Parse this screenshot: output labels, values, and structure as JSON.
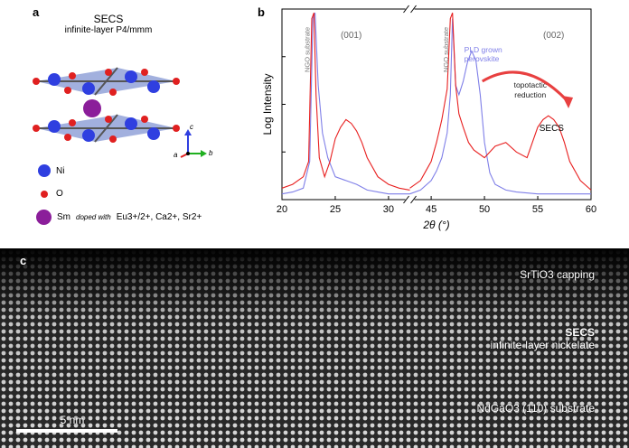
{
  "panel_a": {
    "label": "a",
    "title": "SECS",
    "subtitle": "infinite-layer P4/mmm",
    "axes": {
      "a": "a",
      "b": "b",
      "c": "c"
    },
    "legend": [
      {
        "name": "Ni",
        "color": "#2f3fe0"
      },
      {
        "name": "O",
        "color": "#e02020"
      },
      {
        "name": "Sm",
        "doped_with": "doped with",
        "dopants": "Eu3+/2+, Ca2+, Sr2+",
        "color": "#8b1e9a"
      }
    ]
  },
  "panel_b": {
    "label": "b",
    "annotations": {
      "ngo1": "NGO substrate",
      "ngo2": "NGO substrate",
      "p001": "(001)",
      "p002": "(002)",
      "pld": "PLD grown perovskite",
      "topo": "topotactic reduction",
      "secs": "SECS"
    }
  },
  "chart_data": {
    "type": "line",
    "title": "",
    "xlabel": "2θ (°)",
    "ylabel": "Log Intensity",
    "x_ticks": [
      20,
      25,
      30,
      45,
      50,
      55,
      60
    ],
    "axis_break": [
      32,
      43
    ],
    "series": [
      {
        "name": "PLD grown perovskite",
        "color": "#7f7fe8",
        "x": [
          20,
          21,
          22,
          22.6,
          22.9,
          23.1,
          23.4,
          23.8,
          24.3,
          25,
          26,
          27,
          28,
          29,
          30,
          31,
          32,
          43,
          44,
          45,
          45.5,
          46,
          46.5,
          46.8,
          47,
          47.3,
          47.6,
          48,
          48.4,
          48.8,
          49.2,
          49.6,
          50,
          50.5,
          51,
          52,
          53,
          55,
          57,
          60
        ],
        "y": [
          0.03,
          0.04,
          0.06,
          0.2,
          0.95,
          0.98,
          0.6,
          0.35,
          0.22,
          0.12,
          0.1,
          0.08,
          0.05,
          0.04,
          0.03,
          0.03,
          0.03,
          0.03,
          0.05,
          0.1,
          0.15,
          0.22,
          0.35,
          0.55,
          0.95,
          0.6,
          0.55,
          0.62,
          0.72,
          0.78,
          0.73,
          0.55,
          0.3,
          0.14,
          0.08,
          0.05,
          0.04,
          0.03,
          0.03,
          0.03
        ]
      },
      {
        "name": "SECS",
        "color": "#e82020",
        "x": [
          20,
          21,
          22,
          22.5,
          22.8,
          23,
          23.2,
          23.5,
          24,
          24.5,
          25,
          25.5,
          26,
          26.5,
          27,
          27.5,
          28,
          29,
          30,
          31,
          32,
          43,
          44,
          44.5,
          45,
          45.5,
          46,
          46.5,
          46.8,
          47,
          47.3,
          47.6,
          48,
          48.5,
          49,
          50,
          51,
          52,
          53,
          54,
          54.5,
          55,
          55.5,
          56,
          56.5,
          57,
          57.5,
          58,
          59,
          60
        ],
        "y": [
          0.06,
          0.08,
          0.12,
          0.2,
          0.95,
          0.98,
          0.55,
          0.22,
          0.12,
          0.2,
          0.32,
          0.38,
          0.42,
          0.4,
          0.36,
          0.3,
          0.22,
          0.12,
          0.08,
          0.06,
          0.05,
          0.06,
          0.1,
          0.15,
          0.2,
          0.3,
          0.42,
          0.58,
          0.95,
          0.98,
          0.6,
          0.45,
          0.38,
          0.3,
          0.26,
          0.22,
          0.28,
          0.3,
          0.25,
          0.22,
          0.3,
          0.38,
          0.42,
          0.44,
          0.42,
          0.38,
          0.3,
          0.2,
          0.1,
          0.05
        ]
      }
    ]
  },
  "panel_c": {
    "label": "c",
    "capping": "SrTiO3 capping",
    "secs": "SECS",
    "nickelate": "infinite-layer nickelate",
    "substrate": "NdGaO3 (110) substrate",
    "scalebar": "5 nm"
  }
}
